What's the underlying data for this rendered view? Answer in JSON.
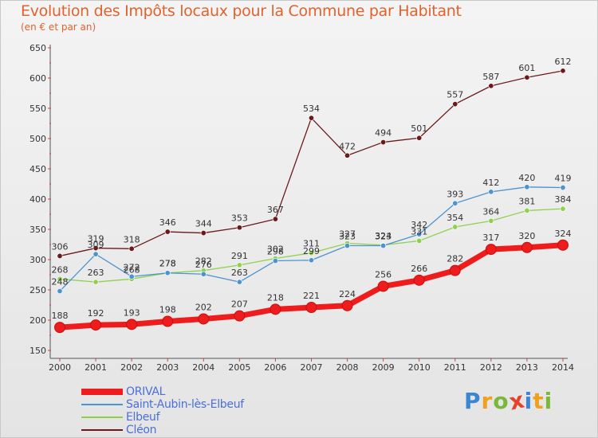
{
  "title": "Evolution des Impôts locaux pour la Commune par Habitant",
  "subtitle": "(en € et par an)",
  "logo": {
    "text": "Proxiti",
    "letters": [
      {
        "ch": "P",
        "color": "#3a86d4"
      },
      {
        "ch": "r",
        "color": "#f0a020"
      },
      {
        "ch": "o",
        "color": "#7ab83c"
      },
      {
        "ch": "x",
        "color": "#e8402c"
      },
      {
        "ch": "i",
        "color": "#3a86d4"
      },
      {
        "ch": "t",
        "color": "#f0a020"
      },
      {
        "ch": "i",
        "color": "#7ab83c"
      }
    ]
  },
  "chart_data": {
    "type": "line",
    "title": "Evolution des Impôts locaux pour la Commune par Habitant",
    "subtitle": "(en € et par an)",
    "x": [
      "2000",
      "2001",
      "2002",
      "2003",
      "2004",
      "2005",
      "2006",
      "2007",
      "2008",
      "2009",
      "2010",
      "2011",
      "2012",
      "2013",
      "2014"
    ],
    "ylim": [
      150,
      650
    ],
    "yticks": [
      150,
      200,
      250,
      300,
      350,
      400,
      450,
      500,
      550,
      600,
      650
    ],
    "grid": false,
    "legend": "bottom-left",
    "series": [
      {
        "name": "ORIVAL",
        "color": "#ee1c1c",
        "values": [
          188,
          192,
          193,
          198,
          202,
          207,
          218,
          221,
          224,
          256,
          266,
          282,
          317,
          320,
          324
        ]
      },
      {
        "name": "Saint-Aubin-lès-Elbeuf",
        "color": "#4d93cf",
        "values": [
          248,
          309,
          272,
          278,
          276,
          263,
          298,
          299,
          323,
          323,
          342,
          393,
          412,
          420,
          419
        ]
      },
      {
        "name": "Elbeuf",
        "color": "#8fd14f",
        "values": [
          268,
          263,
          268,
          278,
          282,
          291,
          302,
          311,
          327,
          324,
          331,
          354,
          364,
          381,
          384
        ]
      },
      {
        "name": "Cléon",
        "color": "#6b1a1a",
        "values": [
          306,
          319,
          318,
          346,
          344,
          353,
          367,
          534,
          472,
          494,
          501,
          557,
          587,
          601,
          612
        ]
      }
    ]
  }
}
